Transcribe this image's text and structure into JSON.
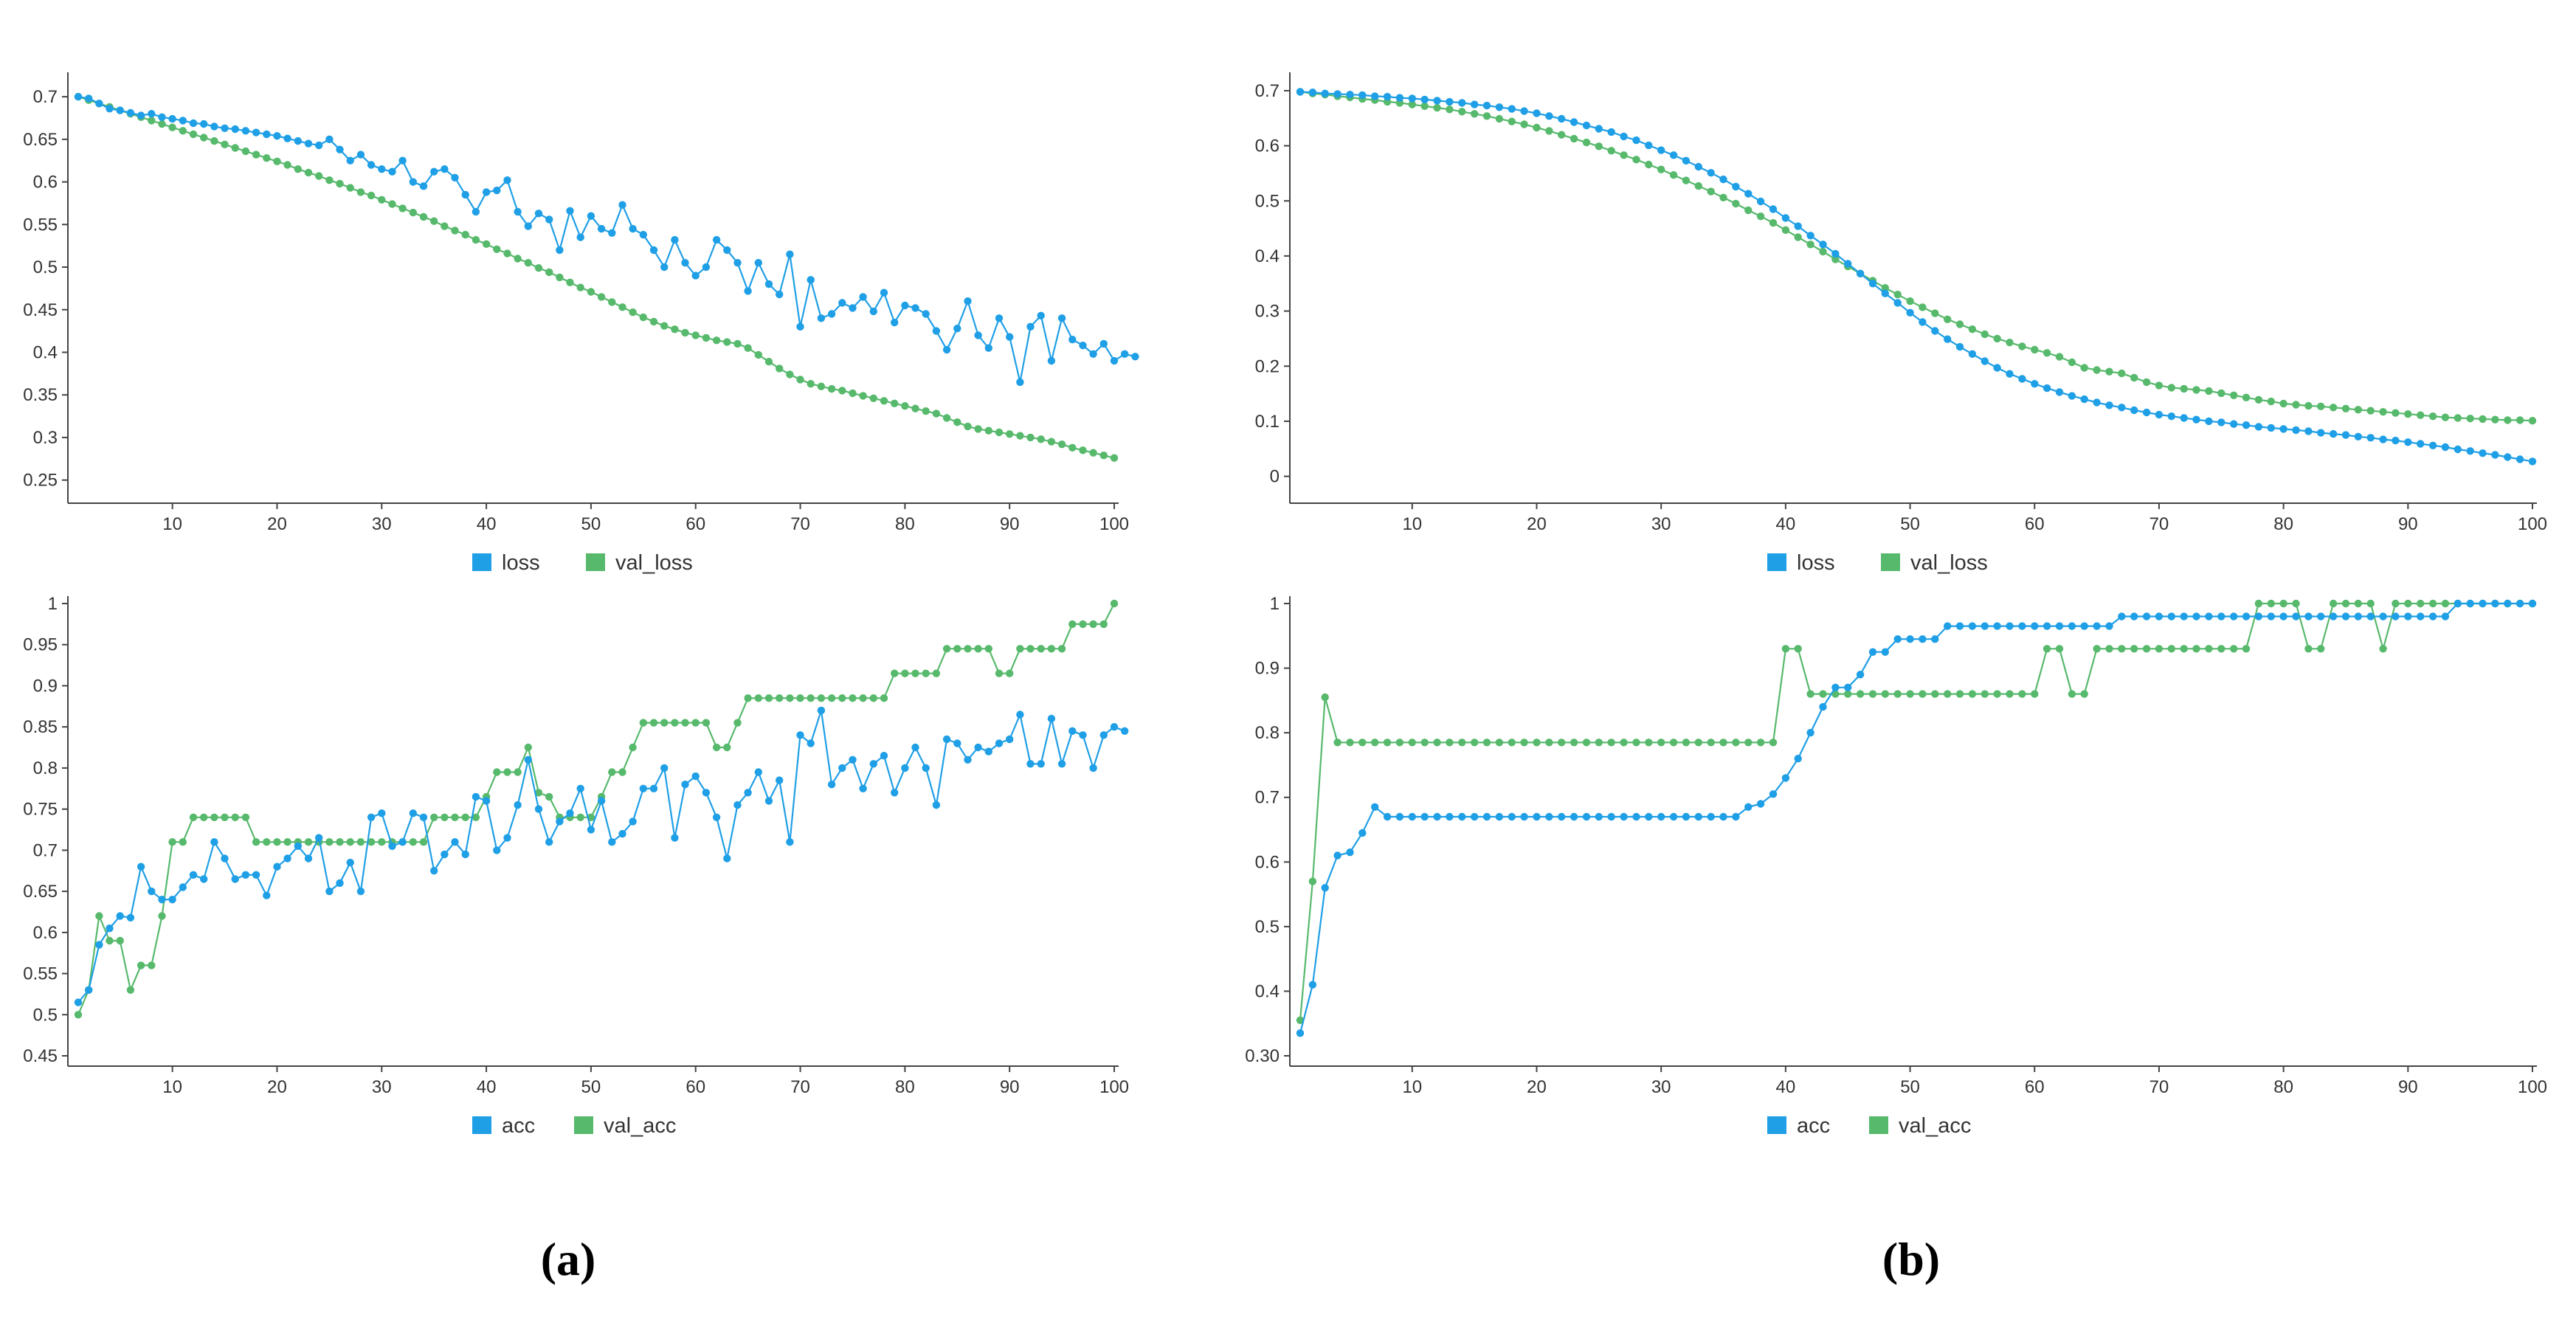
{
  "colors": {
    "blue": "#1f9fe6",
    "green": "#57b96c"
  },
  "captions": {
    "a": "(a)",
    "b": "(b)"
  },
  "chart_data": [
    {
      "type": "line",
      "panel": "a-top",
      "xlim": [
        1,
        100
      ],
      "ylim": [
        0.235,
        0.72
      ],
      "xticks": [
        10,
        20,
        30,
        40,
        50,
        60,
        70,
        80,
        90,
        100
      ],
      "xtick_labels": [
        "10",
        "20",
        "30",
        "40",
        "50",
        "60",
        "70",
        "80",
        "90",
        "100"
      ],
      "yticks": [
        0.25,
        0.3,
        0.35,
        0.4,
        0.45,
        0.5,
        0.55,
        0.6,
        0.65,
        0.7
      ],
      "ytick_labels": [
        "0.25",
        "0.3",
        "0.35",
        "0.4",
        "0.45",
        "0.5",
        "0.55",
        "0.6",
        "0.65",
        "0.7"
      ],
      "legend": [
        "loss",
        "val_loss"
      ],
      "series": [
        {
          "name": "loss",
          "color": "#1f9fe6",
          "x_start": 1,
          "values": [
            0.7,
            0.698,
            0.692,
            0.686,
            0.684,
            0.681,
            0.678,
            0.68,
            0.676,
            0.674,
            0.672,
            0.669,
            0.668,
            0.665,
            0.663,
            0.662,
            0.66,
            0.658,
            0.656,
            0.654,
            0.651,
            0.648,
            0.645,
            0.643,
            0.65,
            0.638,
            0.625,
            0.632,
            0.62,
            0.615,
            0.612,
            0.625,
            0.6,
            0.595,
            0.612,
            0.615,
            0.605,
            0.585,
            0.565,
            0.588,
            0.59,
            0.602,
            0.565,
            0.548,
            0.563,
            0.556,
            0.52,
            0.566,
            0.535,
            0.56,
            0.545,
            0.54,
            0.573,
            0.545,
            0.538,
            0.52,
            0.5,
            0.532,
            0.505,
            0.49,
            0.5,
            0.532,
            0.52,
            0.505,
            0.472,
            0.505,
            0.48,
            0.468,
            0.515,
            0.43,
            0.485,
            0.44,
            0.445,
            0.458,
            0.452,
            0.465,
            0.448,
            0.47,
            0.435,
            0.455,
            0.452,
            0.445,
            0.425,
            0.403,
            0.428,
            0.46,
            0.42,
            0.405,
            0.44,
            0.418,
            0.365,
            0.43,
            0.443,
            0.39,
            0.44,
            0.415,
            0.408,
            0.398,
            0.41,
            0.39,
            0.398,
            0.395
          ]
        },
        {
          "name": "val_loss",
          "color": "#57b96c",
          "x_start": 1,
          "values": [
            0.7,
            0.696,
            0.692,
            0.688,
            0.684,
            0.68,
            0.676,
            0.672,
            0.668,
            0.664,
            0.66,
            0.656,
            0.652,
            0.648,
            0.644,
            0.64,
            0.636,
            0.632,
            0.628,
            0.624,
            0.62,
            0.615,
            0.611,
            0.607,
            0.602,
            0.598,
            0.593,
            0.588,
            0.584,
            0.579,
            0.574,
            0.569,
            0.564,
            0.559,
            0.554,
            0.548,
            0.543,
            0.538,
            0.532,
            0.527,
            0.521,
            0.516,
            0.51,
            0.505,
            0.499,
            0.494,
            0.488,
            0.482,
            0.476,
            0.471,
            0.465,
            0.459,
            0.453,
            0.447,
            0.441,
            0.436,
            0.431,
            0.427,
            0.423,
            0.42,
            0.417,
            0.414,
            0.412,
            0.41,
            0.405,
            0.397,
            0.389,
            0.381,
            0.374,
            0.368,
            0.363,
            0.36,
            0.357,
            0.355,
            0.352,
            0.349,
            0.346,
            0.343,
            0.34,
            0.337,
            0.334,
            0.331,
            0.328,
            0.323,
            0.318,
            0.313,
            0.31,
            0.308,
            0.306,
            0.304,
            0.302,
            0.3,
            0.298,
            0.295,
            0.292,
            0.288,
            0.285,
            0.282,
            0.279,
            0.276
          ]
        }
      ]
    },
    {
      "type": "line",
      "panel": "a-bottom",
      "xlim": [
        1,
        100
      ],
      "ylim": [
        0.45,
        1.0
      ],
      "xticks": [
        10,
        20,
        30,
        40,
        50,
        60,
        70,
        80,
        90,
        100
      ],
      "xtick_labels": [
        "10",
        "20",
        "30",
        "40",
        "50",
        "60",
        "70",
        "80",
        "90",
        "100"
      ],
      "yticks": [
        0.45,
        0.5,
        0.55,
        0.6,
        0.65,
        0.7,
        0.75,
        0.8,
        0.85,
        0.9,
        0.95,
        1.0
      ],
      "ytick_labels": [
        "0.45",
        "0.5",
        "0.55",
        "0.6",
        "0.65",
        "0.7",
        "0.75",
        "0.8",
        "0.85",
        "0.9",
        "0.95",
        "1"
      ],
      "legend": [
        "acc",
        "val_acc"
      ],
      "series": [
        {
          "name": "acc",
          "color": "#1f9fe6",
          "x_start": 1,
          "values": [
            0.515,
            0.53,
            0.585,
            0.605,
            0.62,
            0.618,
            0.68,
            0.65,
            0.64,
            0.64,
            0.655,
            0.67,
            0.665,
            0.71,
            0.69,
            0.665,
            0.67,
            0.67,
            0.645,
            0.68,
            0.69,
            0.705,
            0.69,
            0.715,
            0.65,
            0.66,
            0.685,
            0.65,
            0.74,
            0.745,
            0.705,
            0.71,
            0.745,
            0.74,
            0.675,
            0.695,
            0.71,
            0.695,
            0.765,
            0.76,
            0.7,
            0.715,
            0.755,
            0.81,
            0.75,
            0.71,
            0.735,
            0.745,
            0.775,
            0.725,
            0.76,
            0.71,
            0.72,
            0.735,
            0.775,
            0.775,
            0.8,
            0.715,
            0.78,
            0.79,
            0.77,
            0.74,
            0.69,
            0.755,
            0.77,
            0.795,
            0.76,
            0.785,
            0.71,
            0.84,
            0.83,
            0.87,
            0.78,
            0.8,
            0.81,
            0.775,
            0.805,
            0.815,
            0.77,
            0.8,
            0.825,
            0.8,
            0.755,
            0.835,
            0.83,
            0.81,
            0.825,
            0.82,
            0.83,
            0.835,
            0.865,
            0.805,
            0.805,
            0.86,
            0.805,
            0.845,
            0.84,
            0.8,
            0.84,
            0.85,
            0.845
          ]
        },
        {
          "name": "val_acc",
          "color": "#57b96c",
          "x_start": 1,
          "values": [
            0.5,
            0.53,
            0.62,
            0.59,
            0.59,
            0.53,
            0.56,
            0.56,
            0.62,
            0.71,
            0.71,
            0.74,
            0.74,
            0.74,
            0.74,
            0.74,
            0.74,
            0.71,
            0.71,
            0.71,
            0.71,
            0.71,
            0.71,
            0.71,
            0.71,
            0.71,
            0.71,
            0.71,
            0.71,
            0.71,
            0.71,
            0.71,
            0.71,
            0.71,
            0.74,
            0.74,
            0.74,
            0.74,
            0.74,
            0.765,
            0.795,
            0.795,
            0.795,
            0.825,
            0.77,
            0.765,
            0.74,
            0.74,
            0.74,
            0.74,
            0.765,
            0.795,
            0.795,
            0.825,
            0.855,
            0.855,
            0.855,
            0.855,
            0.855,
            0.855,
            0.855,
            0.825,
            0.825,
            0.855,
            0.885,
            0.885,
            0.885,
            0.885,
            0.885,
            0.885,
            0.885,
            0.885,
            0.885,
            0.885,
            0.885,
            0.885,
            0.885,
            0.885,
            0.915,
            0.915,
            0.915,
            0.915,
            0.915,
            0.945,
            0.945,
            0.945,
            0.945,
            0.945,
            0.915,
            0.915,
            0.945,
            0.945,
            0.945,
            0.945,
            0.945,
            0.975,
            0.975,
            0.975,
            0.975,
            1.0
          ]
        }
      ]
    },
    {
      "type": "line",
      "panel": "b-top",
      "xlim": [
        1,
        100
      ],
      "ylim": [
        -0.03,
        0.72
      ],
      "xticks": [
        10,
        20,
        30,
        40,
        50,
        60,
        70,
        80,
        90,
        100
      ],
      "xtick_labels": [
        "10",
        "20",
        "30",
        "40",
        "50",
        "60",
        "70",
        "80",
        "90",
        "100"
      ],
      "yticks": [
        0,
        0.1,
        0.2,
        0.3,
        0.4,
        0.5,
        0.6,
        0.7
      ],
      "ytick_labels": [
        "0",
        "0.1",
        "0.2",
        "0.3",
        "0.4",
        "0.5",
        "0.6",
        "0.7"
      ],
      "legend": [
        "loss",
        "val_loss"
      ],
      "series": [
        {
          "name": "loss",
          "color": "#1f9fe6",
          "x_start": 1,
          "values": [
            0.698,
            0.697,
            0.695,
            0.694,
            0.693,
            0.692,
            0.69,
            0.689,
            0.687,
            0.686,
            0.684,
            0.682,
            0.68,
            0.678,
            0.675,
            0.673,
            0.67,
            0.667,
            0.663,
            0.659,
            0.654,
            0.649,
            0.643,
            0.637,
            0.631,
            0.625,
            0.617,
            0.61,
            0.601,
            0.592,
            0.583,
            0.573,
            0.562,
            0.551,
            0.539,
            0.526,
            0.513,
            0.499,
            0.485,
            0.469,
            0.454,
            0.437,
            0.421,
            0.404,
            0.386,
            0.368,
            0.35,
            0.332,
            0.315,
            0.297,
            0.28,
            0.264,
            0.249,
            0.235,
            0.222,
            0.209,
            0.197,
            0.186,
            0.177,
            0.168,
            0.16,
            0.153,
            0.146,
            0.14,
            0.134,
            0.129,
            0.125,
            0.12,
            0.116,
            0.112,
            0.109,
            0.106,
            0.103,
            0.1,
            0.098,
            0.095,
            0.093,
            0.09,
            0.088,
            0.086,
            0.084,
            0.082,
            0.079,
            0.077,
            0.075,
            0.072,
            0.07,
            0.067,
            0.065,
            0.062,
            0.059,
            0.056,
            0.053,
            0.049,
            0.046,
            0.042,
            0.039,
            0.035,
            0.031,
            0.027
          ]
        },
        {
          "name": "val_loss",
          "color": "#57b96c",
          "x_start": 1,
          "values": [
            0.698,
            0.695,
            0.693,
            0.69,
            0.688,
            0.685,
            0.683,
            0.68,
            0.678,
            0.675,
            0.672,
            0.669,
            0.666,
            0.662,
            0.658,
            0.654,
            0.649,
            0.644,
            0.639,
            0.633,
            0.627,
            0.62,
            0.613,
            0.606,
            0.599,
            0.591,
            0.583,
            0.575,
            0.566,
            0.557,
            0.547,
            0.537,
            0.527,
            0.517,
            0.506,
            0.495,
            0.483,
            0.472,
            0.46,
            0.447,
            0.434,
            0.421,
            0.408,
            0.394,
            0.381,
            0.368,
            0.355,
            0.342,
            0.33,
            0.318,
            0.307,
            0.296,
            0.285,
            0.276,
            0.267,
            0.258,
            0.25,
            0.243,
            0.236,
            0.23,
            0.224,
            0.217,
            0.207,
            0.197,
            0.193,
            0.19,
            0.187,
            0.179,
            0.171,
            0.165,
            0.161,
            0.159,
            0.157,
            0.155,
            0.151,
            0.147,
            0.143,
            0.139,
            0.136,
            0.132,
            0.13,
            0.128,
            0.127,
            0.125,
            0.123,
            0.121,
            0.119,
            0.117,
            0.115,
            0.113,
            0.111,
            0.109,
            0.107,
            0.106,
            0.105,
            0.104,
            0.103,
            0.102,
            0.102,
            0.101
          ]
        }
      ]
    },
    {
      "type": "line",
      "panel": "b-bottom",
      "xlim": [
        1,
        100
      ],
      "ylim": [
        0.3,
        1.0
      ],
      "xticks": [
        10,
        20,
        30,
        40,
        50,
        60,
        70,
        80,
        90,
        100
      ],
      "xtick_labels": [
        "10",
        "20",
        "30",
        "40",
        "50",
        "60",
        "70",
        "80",
        "90",
        "100"
      ],
      "yticks": [
        0.3,
        0.4,
        0.5,
        0.6,
        0.7,
        0.8,
        0.9,
        1.0
      ],
      "ytick_labels": [
        "0.30",
        "0.4",
        "0.5",
        "0.6",
        "0.7",
        "0.8",
        "0.9",
        "1"
      ],
      "legend": [
        "acc",
        "val_acc"
      ],
      "series": [
        {
          "name": "acc",
          "color": "#1f9fe6",
          "x_start": 1,
          "values": [
            0.335,
            0.41,
            0.56,
            0.61,
            0.615,
            0.645,
            0.685,
            0.67,
            0.67,
            0.67,
            0.67,
            0.67,
            0.67,
            0.67,
            0.67,
            0.67,
            0.67,
            0.67,
            0.67,
            0.67,
            0.67,
            0.67,
            0.67,
            0.67,
            0.67,
            0.67,
            0.67,
            0.67,
            0.67,
            0.67,
            0.67,
            0.67,
            0.67,
            0.67,
            0.67,
            0.67,
            0.685,
            0.69,
            0.705,
            0.73,
            0.76,
            0.8,
            0.84,
            0.87,
            0.87,
            0.89,
            0.925,
            0.925,
            0.945,
            0.945,
            0.945,
            0.945,
            0.965,
            0.965,
            0.965,
            0.965,
            0.965,
            0.965,
            0.965,
            0.965,
            0.965,
            0.965,
            0.965,
            0.965,
            0.965,
            0.965,
            0.98,
            0.98,
            0.98,
            0.98,
            0.98,
            0.98,
            0.98,
            0.98,
            0.98,
            0.98,
            0.98,
            0.98,
            0.98,
            0.98,
            0.98,
            0.98,
            0.98,
            0.98,
            0.98,
            0.98,
            0.98,
            0.98,
            0.98,
            0.98,
            0.98,
            0.98,
            0.98,
            1.0,
            1.0,
            1.0,
            1.0,
            1.0,
            1.0,
            1.0
          ]
        },
        {
          "name": "val_acc",
          "color": "#57b96c",
          "x_start": 1,
          "values": [
            0.355,
            0.57,
            0.855,
            0.785,
            0.785,
            0.785,
            0.785,
            0.785,
            0.785,
            0.785,
            0.785,
            0.785,
            0.785,
            0.785,
            0.785,
            0.785,
            0.785,
            0.785,
            0.785,
            0.785,
            0.785,
            0.785,
            0.785,
            0.785,
            0.785,
            0.785,
            0.785,
            0.785,
            0.785,
            0.785,
            0.785,
            0.785,
            0.785,
            0.785,
            0.785,
            0.785,
            0.785,
            0.785,
            0.785,
            0.93,
            0.93,
            0.86,
            0.86,
            0.86,
            0.86,
            0.86,
            0.86,
            0.86,
            0.86,
            0.86,
            0.86,
            0.86,
            0.86,
            0.86,
            0.86,
            0.86,
            0.86,
            0.86,
            0.86,
            0.86,
            0.93,
            0.93,
            0.86,
            0.86,
            0.93,
            0.93,
            0.93,
            0.93,
            0.93,
            0.93,
            0.93,
            0.93,
            0.93,
            0.93,
            0.93,
            0.93,
            0.93,
            1.0,
            1.0,
            1.0,
            1.0,
            0.93,
            0.93,
            1.0,
            1.0,
            1.0,
            1.0,
            0.93,
            1.0,
            1.0,
            1.0,
            1.0,
            1.0,
            1.0,
            1.0,
            1.0,
            1.0,
            1.0,
            1.0,
            1.0
          ]
        }
      ]
    }
  ]
}
